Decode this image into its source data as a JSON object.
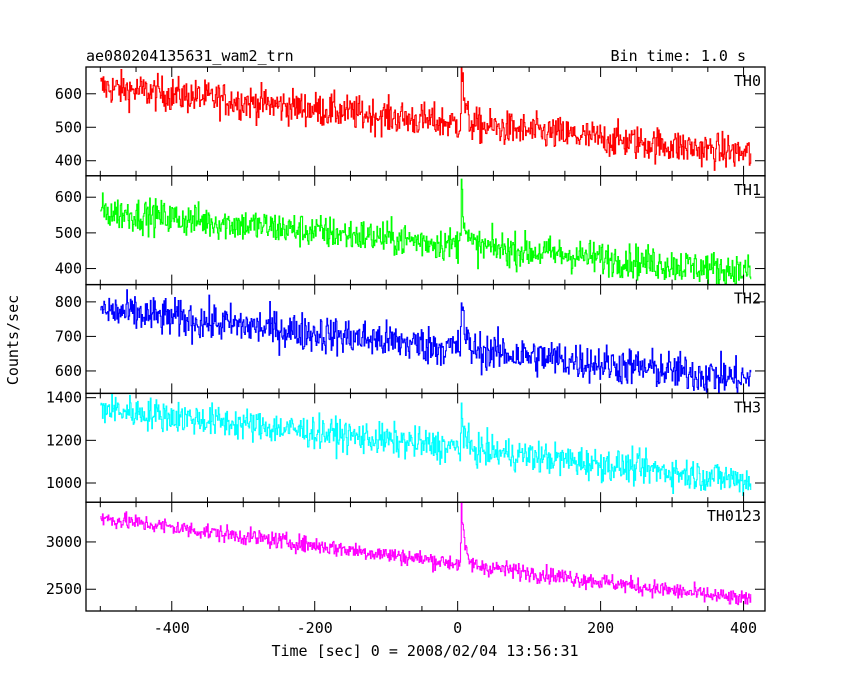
{
  "chart_data": {
    "type": "line",
    "title": "ae080204135631_wam2_trn",
    "subtitle": "Bin time: 1.0 s",
    "xlabel": "Time [sec] 0 = 2008/02/04 13:56:31",
    "ylabel": "Counts/sec",
    "xlim": [
      -520,
      430
    ],
    "xticks": [
      -400,
      -200,
      0,
      200,
      400
    ],
    "x_range": [
      -500,
      410
    ],
    "burst_time": 5,
    "grid": false,
    "panels": [
      {
        "name": "TH0",
        "color": "#ff0000",
        "ylim": [
          355,
          680
        ],
        "yticks": [
          400,
          500,
          600
        ],
        "start": 620,
        "end": 420,
        "noise": 26,
        "peak": 185
      },
      {
        "name": "TH1",
        "color": "#00ff00",
        "ylim": [
          355,
          660
        ],
        "yticks": [
          400,
          500,
          600
        ],
        "start": 560,
        "end": 390,
        "noise": 24,
        "peak": 200
      },
      {
        "name": "TH2",
        "color": "#0000ff",
        "ylim": [
          535,
          850
        ],
        "yticks": [
          600,
          700,
          800
        ],
        "start": 775,
        "end": 575,
        "noise": 28,
        "peak": 160
      },
      {
        "name": "TH3",
        "color": "#00ffff",
        "ylim": [
          910,
          1420
        ],
        "yticks": [
          1000,
          1200,
          1400
        ],
        "start": 1350,
        "end": 1010,
        "noise": 38,
        "peak": 190
      },
      {
        "name": "TH0123",
        "color": "#ff00ff",
        "ylim": [
          2270,
          3420
        ],
        "yticks": [
          2500,
          3000
        ],
        "start": 3250,
        "end": 2380,
        "noise": 45,
        "peak": 650
      }
    ]
  }
}
